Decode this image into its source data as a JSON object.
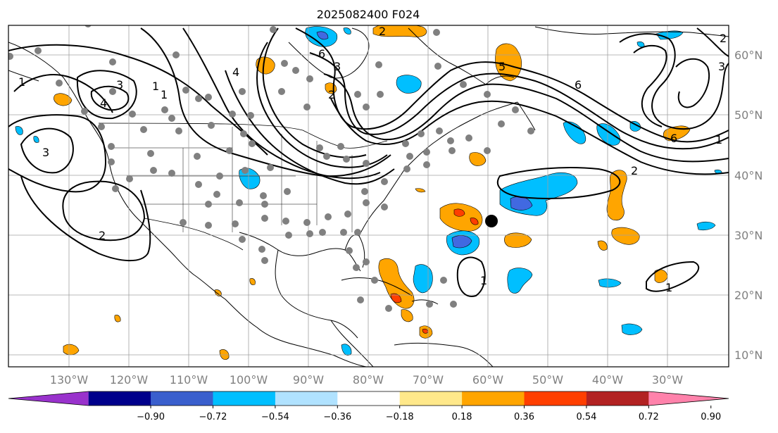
{
  "map": {
    "title": "2025082400 F024",
    "lon_labels": [
      "130°W",
      "120°W",
      "110°W",
      "100°W",
      "90°W",
      "80°W",
      "70°W",
      "60°W",
      "50°W",
      "40°W",
      "30°W"
    ],
    "lat_labels": [
      "60°N",
      "50°N",
      "40°N",
      "30°N",
      "20°N",
      "10°N"
    ],
    "contour_labels": [
      "1",
      "3",
      "1",
      "4",
      "3",
      "2",
      "1",
      "6",
      "4",
      "3",
      "5",
      "6",
      "6",
      "2",
      "1",
      "2",
      "2",
      "3",
      "1",
      "1",
      "2"
    ],
    "colorbar": {
      "ticks": [
        "−0.90",
        "−0.72",
        "−0.54",
        "−0.36",
        "−0.18",
        "0.18",
        "0.36",
        "0.54",
        "0.72",
        "0.90"
      ],
      "colors": [
        "#9932cc",
        "#00008b",
        "#3a5fcd",
        "#00bfff",
        "#b0e2ff",
        "#ffffff",
        "#ffe88a",
        "#ffa500",
        "#ff3f00",
        "#b22222",
        "#ff82ab"
      ]
    },
    "shading_colors": {
      "light_blue": "#00bfff",
      "mid_blue": "#4169e1",
      "orange": "#ffa500",
      "red": "#ff3f00",
      "gray_dot": "#808080"
    }
  }
}
